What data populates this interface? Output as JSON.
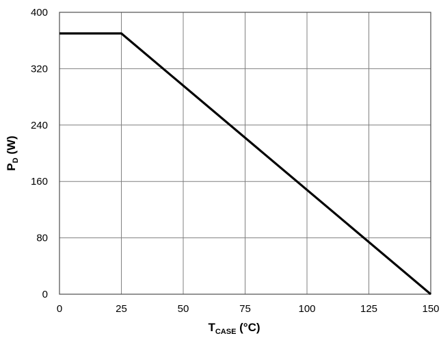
{
  "chart_data": {
    "type": "line",
    "title": "",
    "xlabel": {
      "main": "T",
      "subscript": "CASE",
      "unit": " (°C)"
    },
    "ylabel": {
      "main": "P",
      "subscript": "D",
      "unit": " (W)"
    },
    "xlim": [
      0,
      150
    ],
    "ylim": [
      0,
      400
    ],
    "x_ticks": [
      0,
      25,
      50,
      75,
      100,
      125,
      150
    ],
    "y_ticks": [
      0,
      80,
      160,
      240,
      320,
      400
    ],
    "x_tick_labels": [
      "0",
      "25",
      "50",
      "75",
      "100",
      "125",
      "150"
    ],
    "y_tick_labels": [
      "0",
      "80",
      "160",
      "240",
      "320",
      "400"
    ],
    "grid": true,
    "series": [
      {
        "x": [
          0,
          25,
          150
        ],
        "y": [
          370,
          370,
          0
        ],
        "color": "#000000"
      }
    ]
  }
}
